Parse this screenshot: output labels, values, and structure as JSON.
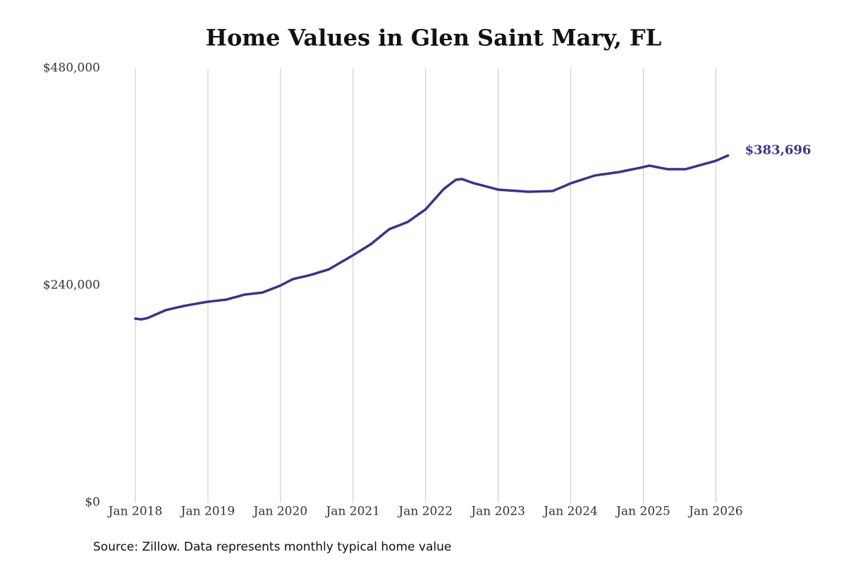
{
  "chart_data": {
    "type": "line",
    "title": "Home Values in Glen Saint Mary, FL",
    "source": "Source: Zillow. Data represents monthly typical home value",
    "color": "#3a3191",
    "x": [
      "2018-01",
      "2018-02",
      "2018-03",
      "2018-04",
      "2018-05",
      "2018-06",
      "2018-07",
      "2018-08",
      "2018-09",
      "2018-10",
      "2018-11",
      "2018-12",
      "2019-01",
      "2019-02",
      "2019-03",
      "2019-04",
      "2019-05",
      "2019-06",
      "2019-07",
      "2019-08",
      "2019-09",
      "2019-10",
      "2019-11",
      "2019-12",
      "2020-01",
      "2020-02",
      "2020-03",
      "2020-04",
      "2020-05",
      "2020-06",
      "2020-07",
      "2020-08",
      "2020-09",
      "2020-10",
      "2020-11",
      "2020-12",
      "2021-01",
      "2021-02",
      "2021-03",
      "2021-04",
      "2021-05",
      "2021-06",
      "2021-07",
      "2021-08",
      "2021-09",
      "2021-10",
      "2021-11",
      "2021-12",
      "2022-01",
      "2022-02",
      "2022-03",
      "2022-04",
      "2022-05",
      "2022-06",
      "2022-07",
      "2022-08",
      "2022-09",
      "2022-10",
      "2022-11",
      "2022-12",
      "2023-01",
      "2023-02",
      "2023-03",
      "2023-04",
      "2023-05",
      "2023-06",
      "2023-07",
      "2023-08",
      "2023-09",
      "2023-10",
      "2023-11",
      "2023-12",
      "2024-01",
      "2024-02",
      "2024-03",
      "2024-04",
      "2024-05",
      "2024-06",
      "2024-07",
      "2024-08",
      "2024-09",
      "2024-10",
      "2024-11",
      "2024-12",
      "2025-01",
      "2025-02",
      "2025-03",
      "2025-04",
      "2025-05",
      "2025-06",
      "2025-07",
      "2025-08",
      "2025-09",
      "2025-10",
      "2025-11",
      "2025-12",
      "2026-01",
      "2026-02",
      "2026-03"
    ],
    "values": [
      203400,
      202600,
      204000,
      206900,
      209800,
      212700,
      214300,
      215900,
      217400,
      218600,
      219800,
      221000,
      222100,
      222900,
      223600,
      224400,
      226200,
      228000,
      229900,
      230700,
      231400,
      232200,
      234800,
      237400,
      240000,
      243500,
      247000,
      248600,
      250100,
      251700,
      253800,
      255800,
      257900,
      261800,
      265700,
      269600,
      273500,
      277700,
      281800,
      286000,
      291400,
      296900,
      302300,
      304900,
      307500,
      310100,
      314800,
      319500,
      324200,
      331700,
      339200,
      346700,
      351800,
      356900,
      357700,
      355300,
      353000,
      351300,
      349500,
      347800,
      346000,
      345500,
      345000,
      344600,
      344100,
      343600,
      343800,
      344000,
      344200,
      344400,
      347300,
      350100,
      353000,
      355200,
      357300,
      359500,
      361600,
      362600,
      363500,
      364500,
      365400,
      366800,
      368200,
      369500,
      370900,
      372500,
      371200,
      369900,
      368600,
      368600,
      368600,
      368600,
      370500,
      372300,
      374200,
      376000,
      377900,
      380800,
      383696
    ],
    "value_labels": [
      null,
      null,
      null,
      null,
      null,
      null,
      null,
      null,
      null,
      null,
      null,
      null,
      null,
      null,
      null,
      null,
      null,
      null,
      null,
      null,
      null,
      null,
      null,
      null,
      null,
      null,
      null,
      null,
      null,
      null,
      null,
      null,
      null,
      null,
      null,
      null,
      null,
      null,
      null,
      null,
      null,
      null,
      null,
      null,
      null,
      null,
      null,
      null,
      null,
      null,
      null,
      null,
      null,
      null,
      null,
      null,
      null,
      null,
      null,
      null,
      null,
      null,
      null,
      null,
      null,
      null,
      null,
      null,
      null,
      null,
      null,
      null,
      null,
      null,
      null,
      null,
      null,
      null,
      null,
      null,
      null,
      null,
      null,
      null,
      null,
      null,
      null,
      null,
      null,
      null,
      null,
      null,
      null,
      null,
      null,
      null,
      null,
      null,
      "$383,696"
    ],
    "xlim": [
      "2018-01",
      "2026-03"
    ],
    "xticks": [
      {
        "value": "2018-01",
        "label": "Jan 2018"
      },
      {
        "value": "2019-01",
        "label": "Jan 2019"
      },
      {
        "value": "2020-01",
        "label": "Jan 2020"
      },
      {
        "value": "2021-01",
        "label": "Jan 2021"
      },
      {
        "value": "2022-01",
        "label": "Jan 2022"
      },
      {
        "value": "2023-01",
        "label": "Jan 2023"
      },
      {
        "value": "2024-01",
        "label": "Jan 2024"
      },
      {
        "value": "2025-01",
        "label": "Jan 2025"
      },
      {
        "value": "2026-01",
        "label": "Jan 2026"
      }
    ],
    "ylim": [
      0,
      480000
    ],
    "yticks": [
      {
        "value": 0,
        "label": "$0"
      },
      {
        "value": 240000,
        "label": "$240,000"
      },
      {
        "value": 480000,
        "label": "$480,000"
      }
    ],
    "grid": "x"
  }
}
